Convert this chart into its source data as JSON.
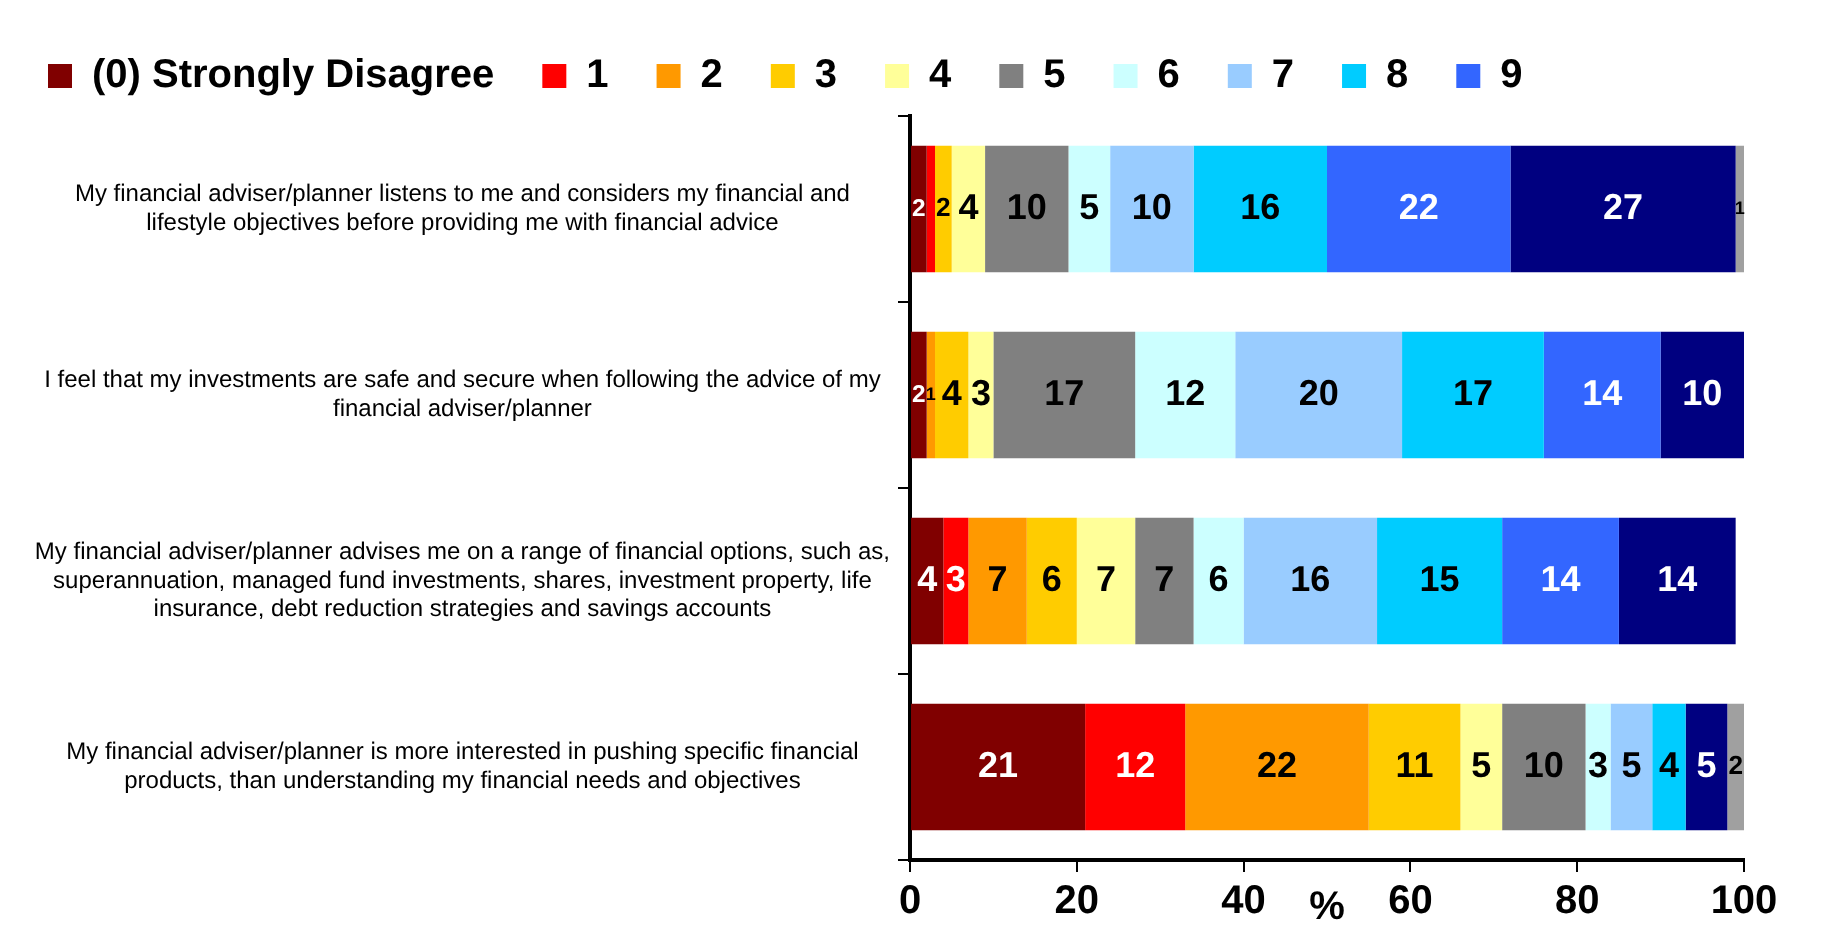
{
  "chart_data": {
    "type": "bar",
    "orientation": "horizontal",
    "stacked": true,
    "categories": [
      "My financial adviser/planner listens to me and considers my financial and lifestyle objectives before providing me with financial advice",
      "I feel that my investments are safe and secure when following the advice of my financial adviser/planner",
      "My financial adviser/planner advises me on a range of financial options, such as, superannuation, managed fund investments, shares, investment property, life insurance, debt reduction strategies and savings accounts",
      "My financial adviser/planner is more interested in pushing specific financial products, than understanding my financial needs and objectives"
    ],
    "series": [
      {
        "name": "(0) Strongly Disagree",
        "color": "#800000",
        "values": [
          2,
          2,
          4,
          21
        ]
      },
      {
        "name": "1",
        "color": "#ff0000",
        "values": [
          1,
          null,
          3,
          12
        ]
      },
      {
        "name": "2",
        "color": "#ff9900",
        "values": [
          null,
          1,
          7,
          22
        ]
      },
      {
        "name": "3",
        "color": "#ffcc00",
        "values": [
          2,
          4,
          6,
          11
        ]
      },
      {
        "name": "4",
        "color": "#ffff99",
        "values": [
          4,
          3,
          7,
          5
        ]
      },
      {
        "name": "5",
        "color": "#808080",
        "values": [
          10,
          17,
          7,
          10
        ]
      },
      {
        "name": "6",
        "color": "#ccffff",
        "values": [
          5,
          12,
          6,
          3
        ]
      },
      {
        "name": "7",
        "color": "#99ccff",
        "values": [
          10,
          20,
          16,
          5
        ]
      },
      {
        "name": "8",
        "color": "#00ccff",
        "values": [
          16,
          17,
          15,
          4
        ]
      },
      {
        "name": "9",
        "color": "#3366ff",
        "values": [
          22,
          14,
          14,
          null
        ]
      },
      {
        "color": "#000080",
        "values": [
          27,
          10,
          14,
          5
        ]
      },
      {
        "color": "#a0a0a0",
        "values": [
          1,
          null,
          null,
          2
        ]
      }
    ],
    "value_labels": [
      [
        "2",
        "2",
        "4",
        "21"
      ],
      [
        null,
        null,
        "3",
        "12"
      ],
      [
        null,
        "1",
        "7",
        "22"
      ],
      [
        "2",
        "4",
        "6",
        "11"
      ],
      [
        "4",
        "3",
        "7",
        "5"
      ],
      [
        "10",
        "17",
        "7",
        "10"
      ],
      [
        "5",
        "12",
        "6",
        "3"
      ],
      [
        "10",
        "20",
        "16",
        "5"
      ],
      [
        "16",
        "17",
        "15",
        "4"
      ],
      [
        "22",
        "14",
        "14",
        null
      ],
      [
        "27",
        "10",
        "14",
        "5"
      ],
      [
        "1",
        null,
        null,
        "2"
      ]
    ],
    "xlabel": "%",
    "xlim": [
      0,
      100
    ],
    "xticks": [
      0,
      20,
      40,
      60,
      80,
      100
    ],
    "grid": false,
    "legend": "top"
  }
}
